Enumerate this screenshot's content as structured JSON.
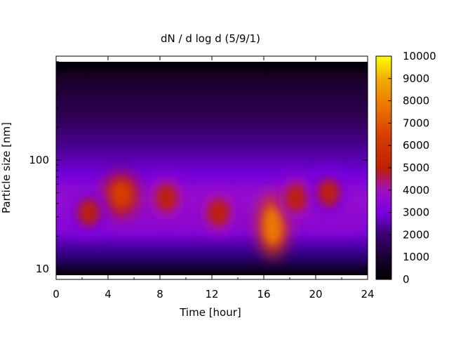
{
  "chart_data": {
    "type": "heatmap",
    "title": "dN / d log d (5/9/1)",
    "xlabel": "Time [hour]",
    "ylabel": "Particle size [nm]",
    "x_range": [
      0,
      24
    ],
    "x_ticks": [
      0,
      4,
      8,
      12,
      16,
      20,
      24
    ],
    "x_tick_labels": [
      "0",
      "4",
      "8",
      "12",
      "16",
      "20",
      "24"
    ],
    "y_scale": "log",
    "y_range": [
      8,
      900
    ],
    "y_ticks": [
      10,
      100
    ],
    "y_tick_labels": [
      "10",
      "100"
    ],
    "colorbar": {
      "range": [
        0,
        10000
      ],
      "ticks": [
        0,
        1000,
        2000,
        3000,
        4000,
        5000,
        6000,
        7000,
        8000,
        9000,
        10000
      ],
      "tick_labels": [
        "0",
        "1000",
        "2000",
        "3000",
        "4000",
        "5000",
        "6000",
        "7000",
        "8000",
        "9000",
        "10000"
      ],
      "palette": [
        "#000000",
        "#3a0070",
        "#7a00e0",
        "#a010c0",
        "#c02000",
        "#e06000",
        "#f0b000",
        "#ffff00"
      ]
    },
    "features": [
      {
        "time_hour": 5.0,
        "size_nm": 48,
        "value": 6800
      },
      {
        "time_hour": 8.5,
        "size_nm": 45,
        "value": 6000
      },
      {
        "time_hour": 2.5,
        "size_nm": 33,
        "value": 5000
      },
      {
        "time_hour": 12.5,
        "size_nm": 33,
        "value": 5200
      },
      {
        "time_hour": 16.7,
        "size_nm": 25,
        "value": 8500
      },
      {
        "time_hour": 18.5,
        "size_nm": 45,
        "value": 5200
      },
      {
        "time_hour": 21.0,
        "size_nm": 50,
        "value": 5000
      }
    ]
  }
}
